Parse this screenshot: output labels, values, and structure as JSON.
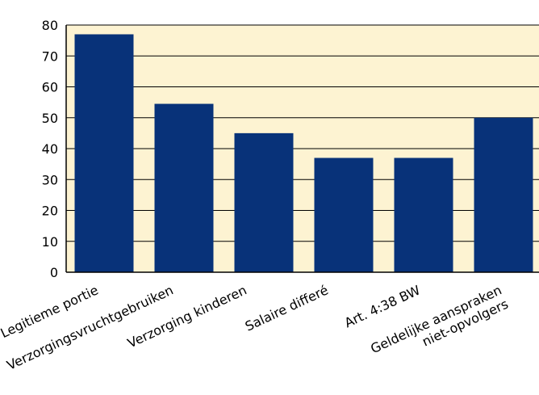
{
  "chart_data": {
    "type": "bar",
    "title": "",
    "xlabel": "",
    "ylabel": "",
    "categories": [
      [
        "Legitieme portie"
      ],
      [
        "Verzorgingsvruchtgebruiken"
      ],
      [
        "Verzorging kinderen"
      ],
      [
        "Salaire differé"
      ],
      [
        "Art. 4:38 BW"
      ],
      [
        "Geldelijke aanspraken",
        "niet-opvolgers"
      ]
    ],
    "values": [
      77,
      54.5,
      45,
      37,
      37,
      50
    ],
    "ylim": [
      0,
      80
    ],
    "yticks": [
      0,
      10,
      20,
      30,
      40,
      50,
      60,
      70,
      80
    ],
    "grid": true,
    "legend": "none",
    "colors": {
      "plot_background": "#fdf3d2",
      "bar": "#083279",
      "axis": "#000000",
      "grid": "#000000"
    }
  }
}
